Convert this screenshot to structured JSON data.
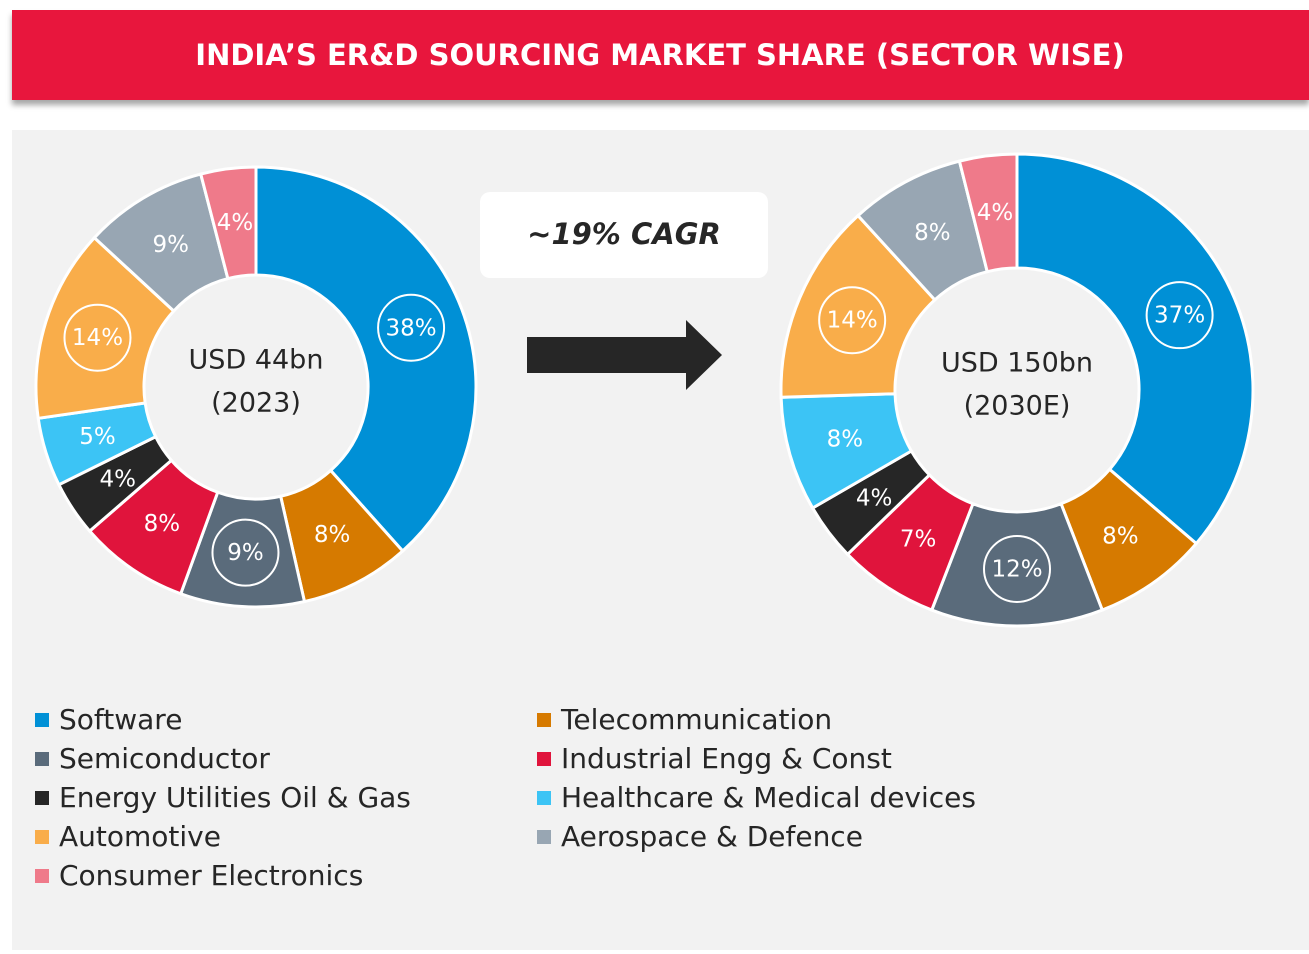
{
  "chart_data": {
    "type": "donut",
    "title": "INDIA’S ER&D SOURCING MARKET SHARE (SECTOR WISE)",
    "annotation": "~19% CAGR",
    "categories": [
      "Software",
      "Telecommunication",
      "Semiconductor",
      "Industrial Engg & Const",
      "Energy Utilities Oil & Gas",
      "Healthcare & Medical devices",
      "Automotive",
      "Aerospace & Defence",
      "Consumer Electronics"
    ],
    "colors": [
      "#0090d6",
      "#d67a00",
      "#5a6b7b",
      "#e0143c",
      "#262626",
      "#3cc4f5",
      "#f9ad4a",
      "#98a6b3",
      "#ef7a8a"
    ],
    "series": [
      {
        "center_label": [
          "USD 44bn",
          "(2023)"
        ],
        "values": [
          38,
          8,
          9,
          8,
          4,
          5,
          14,
          9,
          4
        ],
        "value_labels": [
          "38%",
          "8%",
          "9%",
          "8%",
          "4%",
          "5%",
          "14%",
          "9%",
          "4%"
        ]
      },
      {
        "center_label": [
          "USD 150bn",
          "(2030E)"
        ],
        "values": [
          37,
          8,
          12,
          7,
          4,
          8,
          14,
          8,
          4
        ],
        "value_labels": [
          "37%",
          "8%",
          "12%",
          "7%",
          "4%",
          "8%",
          "14%",
          "8%",
          "4%"
        ]
      }
    ]
  }
}
